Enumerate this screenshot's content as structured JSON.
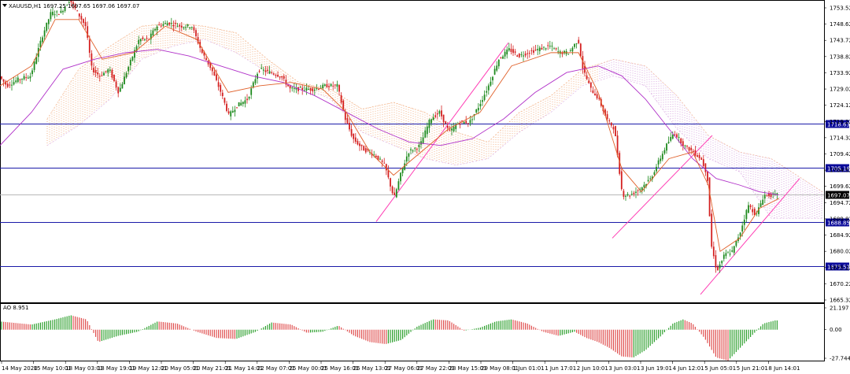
{
  "header": {
    "symbol_info": "XAUUSD,H1 1697.25 1697.65 1697.06 1697.07",
    "indicator_label": "AO 8.951"
  },
  "price_axis": {
    "ticks": [
      "1753.52",
      "1748.62",
      "1743.72",
      "1738.82",
      "1733.92",
      "1729.02",
      "1724.12",
      "1719.22",
      "1714.32",
      "1709.42",
      "1704.52",
      "1699.62",
      "1694.72",
      "1689.82",
      "1684.92",
      "1680.02",
      "1675.12",
      "1670.22",
      "1665.32"
    ],
    "ylim": [
      1665.32,
      1756.0
    ]
  },
  "ao_axis": {
    "ticks": [
      "21.197",
      "0.00",
      "-27.744"
    ],
    "ylim": [
      -27.744,
      21.197
    ]
  },
  "levels": [
    {
      "label": "1718.63",
      "value": 1718.63,
      "color": "#1a1aa8"
    },
    {
      "label": "1705.16",
      "value": 1705.16,
      "color": "#1a1aa8"
    },
    {
      "label": "1688.85",
      "value": 1688.85,
      "color": "#1a1aa8"
    },
    {
      "label": "1675.52",
      "value": 1675.52,
      "color": "#1a1aa8"
    }
  ],
  "current_price": {
    "label": "1697.07",
    "value": 1697.07
  },
  "time_axis": [
    "14 May 2020",
    "15 May 10:01",
    "18 May 03:01",
    "18 May 19:01",
    "19 May 12:01",
    "20 May 05:01",
    "20 May 21:01",
    "21 May 14:01",
    "22 May 07:01",
    "25 May 00:01",
    "25 May 16:01",
    "26 May 13:01",
    "27 May 06:01",
    "27 May 22:01",
    "28 May 15:01",
    "29 May 08:01",
    "1 Jun 01:01",
    "1 Jun 17:01",
    "2 Jun 10:01",
    "3 Jun 03:01",
    "3 Jun 19:01",
    "4 Jun 12:01",
    "5 Jun 05:01",
    "5 Jun 21:01",
    "8 Jun 14:01"
  ],
  "colors": {
    "bull": "#1e8a1e",
    "bear": "#d42020",
    "ma_fast": "#e0602a",
    "ma_slow": "#b030c8",
    "channel": "#ff3cb4",
    "cloud_bull": "#f3b48a",
    "cloud_bear": "#d8a8e0",
    "ao_up": "#2ea02e",
    "ao_down": "#e05050"
  },
  "chart_data": {
    "type": "candlestick",
    "anchors": [
      [
        0,
        1733
      ],
      [
        10,
        1730
      ],
      [
        25,
        1732
      ],
      [
        40,
        1733
      ],
      [
        55,
        1745
      ],
      [
        66,
        1752
      ],
      [
        78,
        1752
      ],
      [
        90,
        1756
      ],
      [
        100,
        1752
      ],
      [
        110,
        1748
      ],
      [
        118,
        1735
      ],
      [
        128,
        1733
      ],
      [
        140,
        1735
      ],
      [
        152,
        1728
      ],
      [
        165,
        1736
      ],
      [
        178,
        1744
      ],
      [
        190,
        1744
      ],
      [
        200,
        1748
      ],
      [
        215,
        1749
      ],
      [
        230,
        1748
      ],
      [
        245,
        1748
      ],
      [
        258,
        1740
      ],
      [
        270,
        1735
      ],
      [
        282,
        1728
      ],
      [
        292,
        1721
      ],
      [
        302,
        1724
      ],
      [
        316,
        1726
      ],
      [
        330,
        1735
      ],
      [
        345,
        1734
      ],
      [
        358,
        1733
      ],
      [
        370,
        1729
      ],
      [
        385,
        1729
      ],
      [
        400,
        1729
      ],
      [
        415,
        1730
      ],
      [
        430,
        1730
      ],
      [
        440,
        1720
      ],
      [
        450,
        1714
      ],
      [
        462,
        1711
      ],
      [
        478,
        1709
      ],
      [
        490,
        1706
      ],
      [
        502,
        1696
      ],
      [
        510,
        1703
      ],
      [
        520,
        1710
      ],
      [
        535,
        1712
      ],
      [
        548,
        1720
      ],
      [
        560,
        1722
      ],
      [
        572,
        1716
      ],
      [
        585,
        1719
      ],
      [
        598,
        1719
      ],
      [
        610,
        1724
      ],
      [
        622,
        1730
      ],
      [
        635,
        1738
      ],
      [
        648,
        1741
      ],
      [
        660,
        1739
      ],
      [
        672,
        1740
      ],
      [
        685,
        1741
      ],
      [
        700,
        1742
      ],
      [
        712,
        1740
      ],
      [
        724,
        1740
      ],
      [
        736,
        1744
      ],
      [
        742,
        1735
      ],
      [
        752,
        1729
      ],
      [
        762,
        1726
      ],
      [
        772,
        1720
      ],
      [
        782,
        1717
      ],
      [
        792,
        1697
      ],
      [
        802,
        1697
      ],
      [
        815,
        1699
      ],
      [
        828,
        1702
      ],
      [
        840,
        1708
      ],
      [
        848,
        1712
      ],
      [
        858,
        1716
      ],
      [
        870,
        1712
      ],
      [
        882,
        1710
      ],
      [
        892,
        1708
      ],
      [
        900,
        1703
      ],
      [
        905,
        1682
      ],
      [
        912,
        1674
      ],
      [
        922,
        1679
      ],
      [
        932,
        1680
      ],
      [
        942,
        1686
      ],
      [
        952,
        1694
      ],
      [
        962,
        1691
      ],
      [
        972,
        1697
      ],
      [
        984,
        1697
      ],
      [
        990,
        1697
      ]
    ],
    "ma_fast": [
      [
        0,
        1730
      ],
      [
        40,
        1736
      ],
      [
        70,
        1750
      ],
      [
        100,
        1750
      ],
      [
        130,
        1738
      ],
      [
        170,
        1740
      ],
      [
        210,
        1748
      ],
      [
        250,
        1744
      ],
      [
        290,
        1728
      ],
      [
        330,
        1730
      ],
      [
        370,
        1731
      ],
      [
        410,
        1729
      ],
      [
        440,
        1722
      ],
      [
        470,
        1710
      ],
      [
        500,
        1703
      ],
      [
        530,
        1709
      ],
      [
        570,
        1717
      ],
      [
        610,
        1722
      ],
      [
        650,
        1736
      ],
      [
        700,
        1740
      ],
      [
        735,
        1740
      ],
      [
        760,
        1728
      ],
      [
        790,
        1705
      ],
      [
        815,
        1698
      ],
      [
        850,
        1708
      ],
      [
        880,
        1710
      ],
      [
        900,
        1700
      ],
      [
        915,
        1680
      ],
      [
        940,
        1684
      ],
      [
        965,
        1693
      ],
      [
        990,
        1696
      ]
    ],
    "ma_slow": [
      [
        0,
        1712
      ],
      [
        40,
        1722
      ],
      [
        80,
        1735
      ],
      [
        120,
        1738
      ],
      [
        160,
        1740
      ],
      [
        200,
        1741
      ],
      [
        240,
        1739
      ],
      [
        280,
        1736
      ],
      [
        320,
        1733
      ],
      [
        360,
        1731
      ],
      [
        400,
        1727
      ],
      [
        440,
        1722
      ],
      [
        480,
        1717
      ],
      [
        520,
        1713
      ],
      [
        560,
        1712
      ],
      [
        600,
        1714
      ],
      [
        640,
        1720
      ],
      [
        680,
        1728
      ],
      [
        720,
        1734
      ],
      [
        760,
        1736
      ],
      [
        790,
        1733
      ],
      [
        820,
        1726
      ],
      [
        850,
        1717
      ],
      [
        880,
        1708
      ],
      [
        910,
        1702
      ],
      [
        940,
        1700
      ],
      [
        965,
        1698
      ],
      [
        990,
        1697
      ]
    ],
    "cloud_upper": [
      [
        60,
        1720
      ],
      [
        100,
        1735
      ],
      [
        140,
        1742
      ],
      [
        180,
        1748
      ],
      [
        220,
        1749
      ],
      [
        260,
        1748
      ],
      [
        300,
        1746
      ],
      [
        340,
        1738
      ],
      [
        380,
        1731
      ],
      [
        420,
        1729
      ],
      [
        460,
        1723
      ],
      [
        500,
        1725
      ],
      [
        540,
        1722
      ],
      [
        580,
        1716
      ],
      [
        620,
        1713
      ],
      [
        660,
        1722
      ],
      [
        700,
        1727
      ],
      [
        740,
        1735
      ],
      [
        780,
        1738
      ],
      [
        820,
        1736
      ],
      [
        860,
        1727
      ],
      [
        900,
        1715
      ],
      [
        940,
        1710
      ],
      [
        980,
        1708
      ],
      [
        1045,
        1698
      ]
    ],
    "cloud_lower": [
      [
        60,
        1712
      ],
      [
        100,
        1718
      ],
      [
        140,
        1726
      ],
      [
        180,
        1738
      ],
      [
        220,
        1742
      ],
      [
        260,
        1744
      ],
      [
        300,
        1740
      ],
      [
        340,
        1734
      ],
      [
        380,
        1730
      ],
      [
        420,
        1726
      ],
      [
        460,
        1716
      ],
      [
        500,
        1712
      ],
      [
        540,
        1708
      ],
      [
        580,
        1706
      ],
      [
        620,
        1708
      ],
      [
        660,
        1716
      ],
      [
        700,
        1722
      ],
      [
        740,
        1730
      ],
      [
        780,
        1733
      ],
      [
        820,
        1730
      ],
      [
        860,
        1717
      ],
      [
        900,
        1708
      ],
      [
        940,
        1704
      ],
      [
        980,
        1690
      ],
      [
        1045,
        1690
      ]
    ],
    "channels": [
      [
        [
          478,
          1689
        ],
        [
          646,
          1743
        ]
      ],
      [
        [
          778,
          1684
        ],
        [
          905,
          1715
        ]
      ],
      [
        [
          890,
          1667
        ],
        [
          1016,
          1702
        ]
      ]
    ],
    "ao_anchors": [
      [
        0,
        8
      ],
      [
        40,
        5
      ],
      [
        70,
        10
      ],
      [
        90,
        14
      ],
      [
        110,
        10
      ],
      [
        125,
        -12
      ],
      [
        150,
        -6
      ],
      [
        175,
        -2
      ],
      [
        200,
        8
      ],
      [
        225,
        6
      ],
      [
        250,
        -2
      ],
      [
        275,
        -8
      ],
      [
        300,
        -9
      ],
      [
        325,
        -2
      ],
      [
        345,
        7
      ],
      [
        370,
        5
      ],
      [
        390,
        -3
      ],
      [
        410,
        -2
      ],
      [
        430,
        4
      ],
      [
        450,
        -6
      ],
      [
        470,
        -12
      ],
      [
        490,
        -14
      ],
      [
        510,
        -10
      ],
      [
        530,
        3
      ],
      [
        550,
        10
      ],
      [
        570,
        9
      ],
      [
        590,
        -1
      ],
      [
        610,
        2
      ],
      [
        630,
        8
      ],
      [
        650,
        10
      ],
      [
        670,
        6
      ],
      [
        690,
        -2
      ],
      [
        710,
        -6
      ],
      [
        730,
        -2
      ],
      [
        745,
        -8
      ],
      [
        760,
        -12
      ],
      [
        775,
        -18
      ],
      [
        790,
        -26
      ],
      [
        805,
        -27
      ],
      [
        820,
        -20
      ],
      [
        840,
        -6
      ],
      [
        855,
        6
      ],
      [
        868,
        10
      ],
      [
        880,
        6
      ],
      [
        895,
        -8
      ],
      [
        910,
        -27
      ],
      [
        925,
        -30
      ],
      [
        940,
        -18
      ],
      [
        955,
        -6
      ],
      [
        970,
        6
      ],
      [
        985,
        9
      ]
    ]
  }
}
